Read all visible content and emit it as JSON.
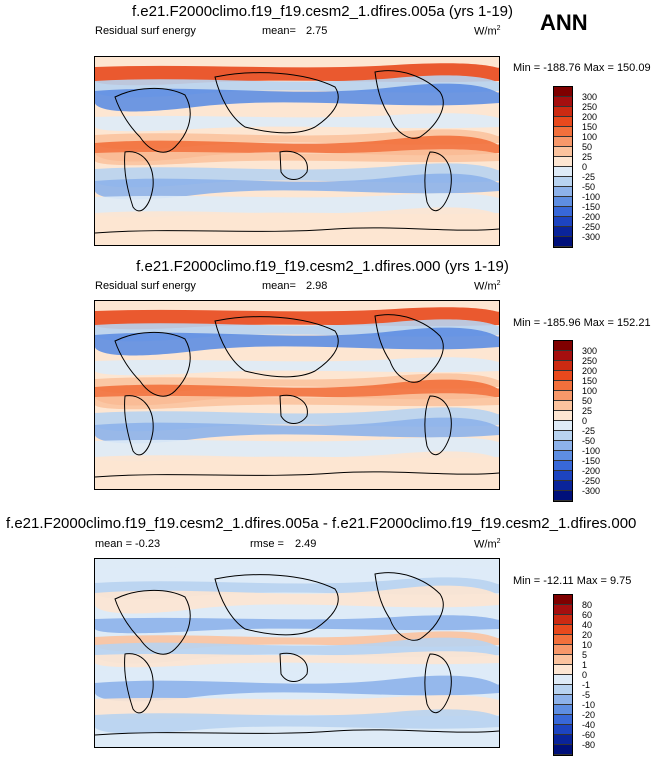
{
  "season": "ANN",
  "panels": [
    {
      "title": "f.e21.F2000climo.f19_f19.cesm2_1.dfires.005a (yrs 1-19)",
      "left_label": "Residual surf energy",
      "stat_label": "mean=",
      "stat_value": "2.75",
      "units": "W/m",
      "units_sup": "2",
      "minmax": "Min = -188.76 Max = 150.09",
      "levels": [
        "300",
        "250",
        "200",
        "150",
        "100",
        "50",
        "25",
        "0",
        "-25",
        "-50",
        "-100",
        "-150",
        "-200",
        "-250",
        "-300"
      ]
    },
    {
      "title": "f.e21.F2000climo.f19_f19.cesm2_1.dfires.000 (yrs 1-19)",
      "left_label": "Residual surf energy",
      "stat_label": "mean=",
      "stat_value": "2.98",
      "units": "W/m",
      "units_sup": "2",
      "minmax": "Min = -185.96 Max = 152.21",
      "levels": [
        "300",
        "250",
        "200",
        "150",
        "100",
        "50",
        "25",
        "0",
        "-25",
        "-50",
        "-100",
        "-150",
        "-200",
        "-250",
        "-300"
      ]
    },
    {
      "title": "f.e21.F2000climo.f19_f19.cesm2_1.dfires.005a - f.e21.F2000climo.f19_f19.cesm2_1.dfires.000",
      "left_label": "mean =  -0.23",
      "stat_label": "rmse =",
      "stat_value": "2.49",
      "units": "W/m",
      "units_sup": "2",
      "minmax": "Min = -12.11 Max =  9.75",
      "levels": [
        "80",
        "60",
        "40",
        "20",
        "10",
        "5",
        "1",
        "0",
        "-1",
        "-5",
        "-10",
        "-20",
        "-40",
        "-60",
        "-80"
      ]
    }
  ],
  "colors": [
    "#7f0000",
    "#a50f0f",
    "#cc2a12",
    "#e8491d",
    "#f2703c",
    "#f7986a",
    "#fbc39e",
    "#fde6d2",
    "#deebf7",
    "#b8d3f0",
    "#8db2ea",
    "#5e8ee2",
    "#3868d8",
    "#1d44c0",
    "#0a249a",
    "#00107a"
  ],
  "chart_data": [
    {
      "type": "heatmap",
      "title": "f.e21.F2000climo.f19_f19.cesm2_1.dfires.005a (yrs 1-19)",
      "variable": "Residual surf energy",
      "units": "W/m2",
      "mean": 2.75,
      "min": -188.76,
      "max": 150.09,
      "contour_levels": [
        -300,
        -250,
        -200,
        -150,
        -100,
        -50,
        -25,
        0,
        25,
        50,
        100,
        150,
        200,
        250,
        300
      ]
    },
    {
      "type": "heatmap",
      "title": "f.e21.F2000climo.f19_f19.cesm2_1.dfires.000 (yrs 1-19)",
      "variable": "Residual surf energy",
      "units": "W/m2",
      "mean": 2.98,
      "min": -185.96,
      "max": 152.21,
      "contour_levels": [
        -300,
        -250,
        -200,
        -150,
        -100,
        -50,
        -25,
        0,
        25,
        50,
        100,
        150,
        200,
        250,
        300
      ]
    },
    {
      "type": "heatmap",
      "title": "f.e21.F2000climo.f19_f19.cesm2_1.dfires.005a - f.e21.F2000climo.f19_f19.cesm2_1.dfires.000",
      "units": "W/m2",
      "mean": -0.23,
      "rmse": 2.49,
      "min": -12.11,
      "max": 9.75,
      "contour_levels": [
        -80,
        -60,
        -40,
        -20,
        -10,
        -5,
        -1,
        0,
        1,
        5,
        10,
        20,
        40,
        60,
        80
      ]
    }
  ]
}
